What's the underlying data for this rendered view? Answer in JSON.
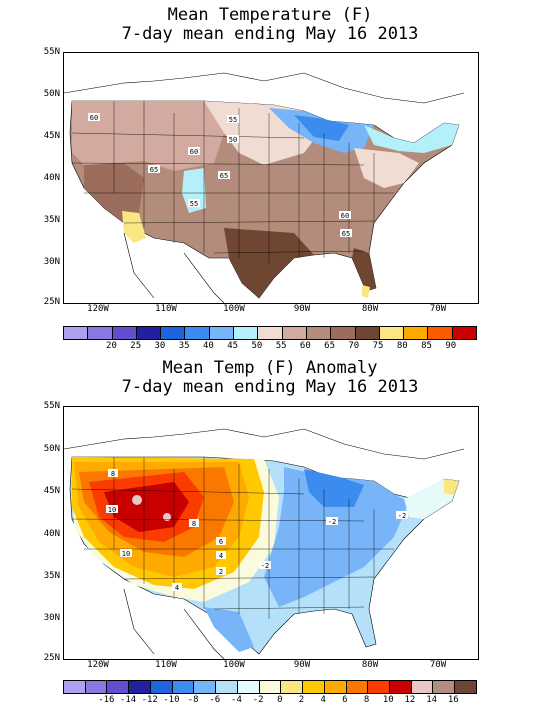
{
  "panel1": {
    "title_line1": "Mean Temperature (F)",
    "title_line2": "7-day mean ending May 16 2013",
    "lat_labels": [
      "55N",
      "50N",
      "45N",
      "40N",
      "35N",
      "30N",
      "25N"
    ],
    "lon_labels": [
      "120W",
      "110W",
      "100W",
      "90W",
      "80W",
      "70W"
    ],
    "contour_labels": [
      "60",
      "55",
      "50",
      "60",
      "65",
      "65",
      "55",
      "60",
      "65"
    ],
    "colorbar": {
      "colors": [
        "#b0a0f0",
        "#8878e0",
        "#6050d0",
        "#2020a0",
        "#1e64dc",
        "#3c8cf0",
        "#78b4f8",
        "#b4f0fa",
        "#f0dcd2",
        "#d2aaa0",
        "#b48c7c",
        "#9c6c5c",
        "#6e4632",
        "#fae682",
        "#ffaa00",
        "#fa5a00",
        "#c80000"
      ],
      "labels": [
        "20",
        "25",
        "30",
        "35",
        "40",
        "45",
        "50",
        "55",
        "60",
        "65",
        "70",
        "75",
        "80",
        "85",
        "90"
      ]
    }
  },
  "panel2": {
    "title_line1": "Mean Temp (F) Anomaly",
    "title_line2": "7-day mean ending May 16 2013",
    "lat_labels": [
      "55N",
      "50N",
      "45N",
      "40N",
      "35N",
      "30N",
      "25N"
    ],
    "lon_labels": [
      "120W",
      "110W",
      "100W",
      "90W",
      "80W",
      "70W"
    ],
    "contour_labels": [
      "8",
      "10",
      "10",
      "8",
      "6",
      "4",
      "2",
      "-2",
      "-2",
      "-2",
      "4"
    ],
    "colorbar": {
      "colors": [
        "#b0a0f0",
        "#8878e0",
        "#6050d0",
        "#2020a0",
        "#1e64dc",
        "#3c8cf0",
        "#78b4f8",
        "#b4e0fa",
        "#e6fafa",
        "#fafadc",
        "#fae682",
        "#ffc800",
        "#ffaa00",
        "#fa7800",
        "#fa3c00",
        "#c80000",
        "#e6c8c8",
        "#b48c82",
        "#6e4632"
      ],
      "labels": [
        "-16",
        "-14",
        "-12",
        "-10",
        "-8",
        "-6",
        "-4",
        "-2",
        "0",
        "2",
        "4",
        "6",
        "8",
        "10",
        "12",
        "14",
        "16"
      ]
    }
  }
}
